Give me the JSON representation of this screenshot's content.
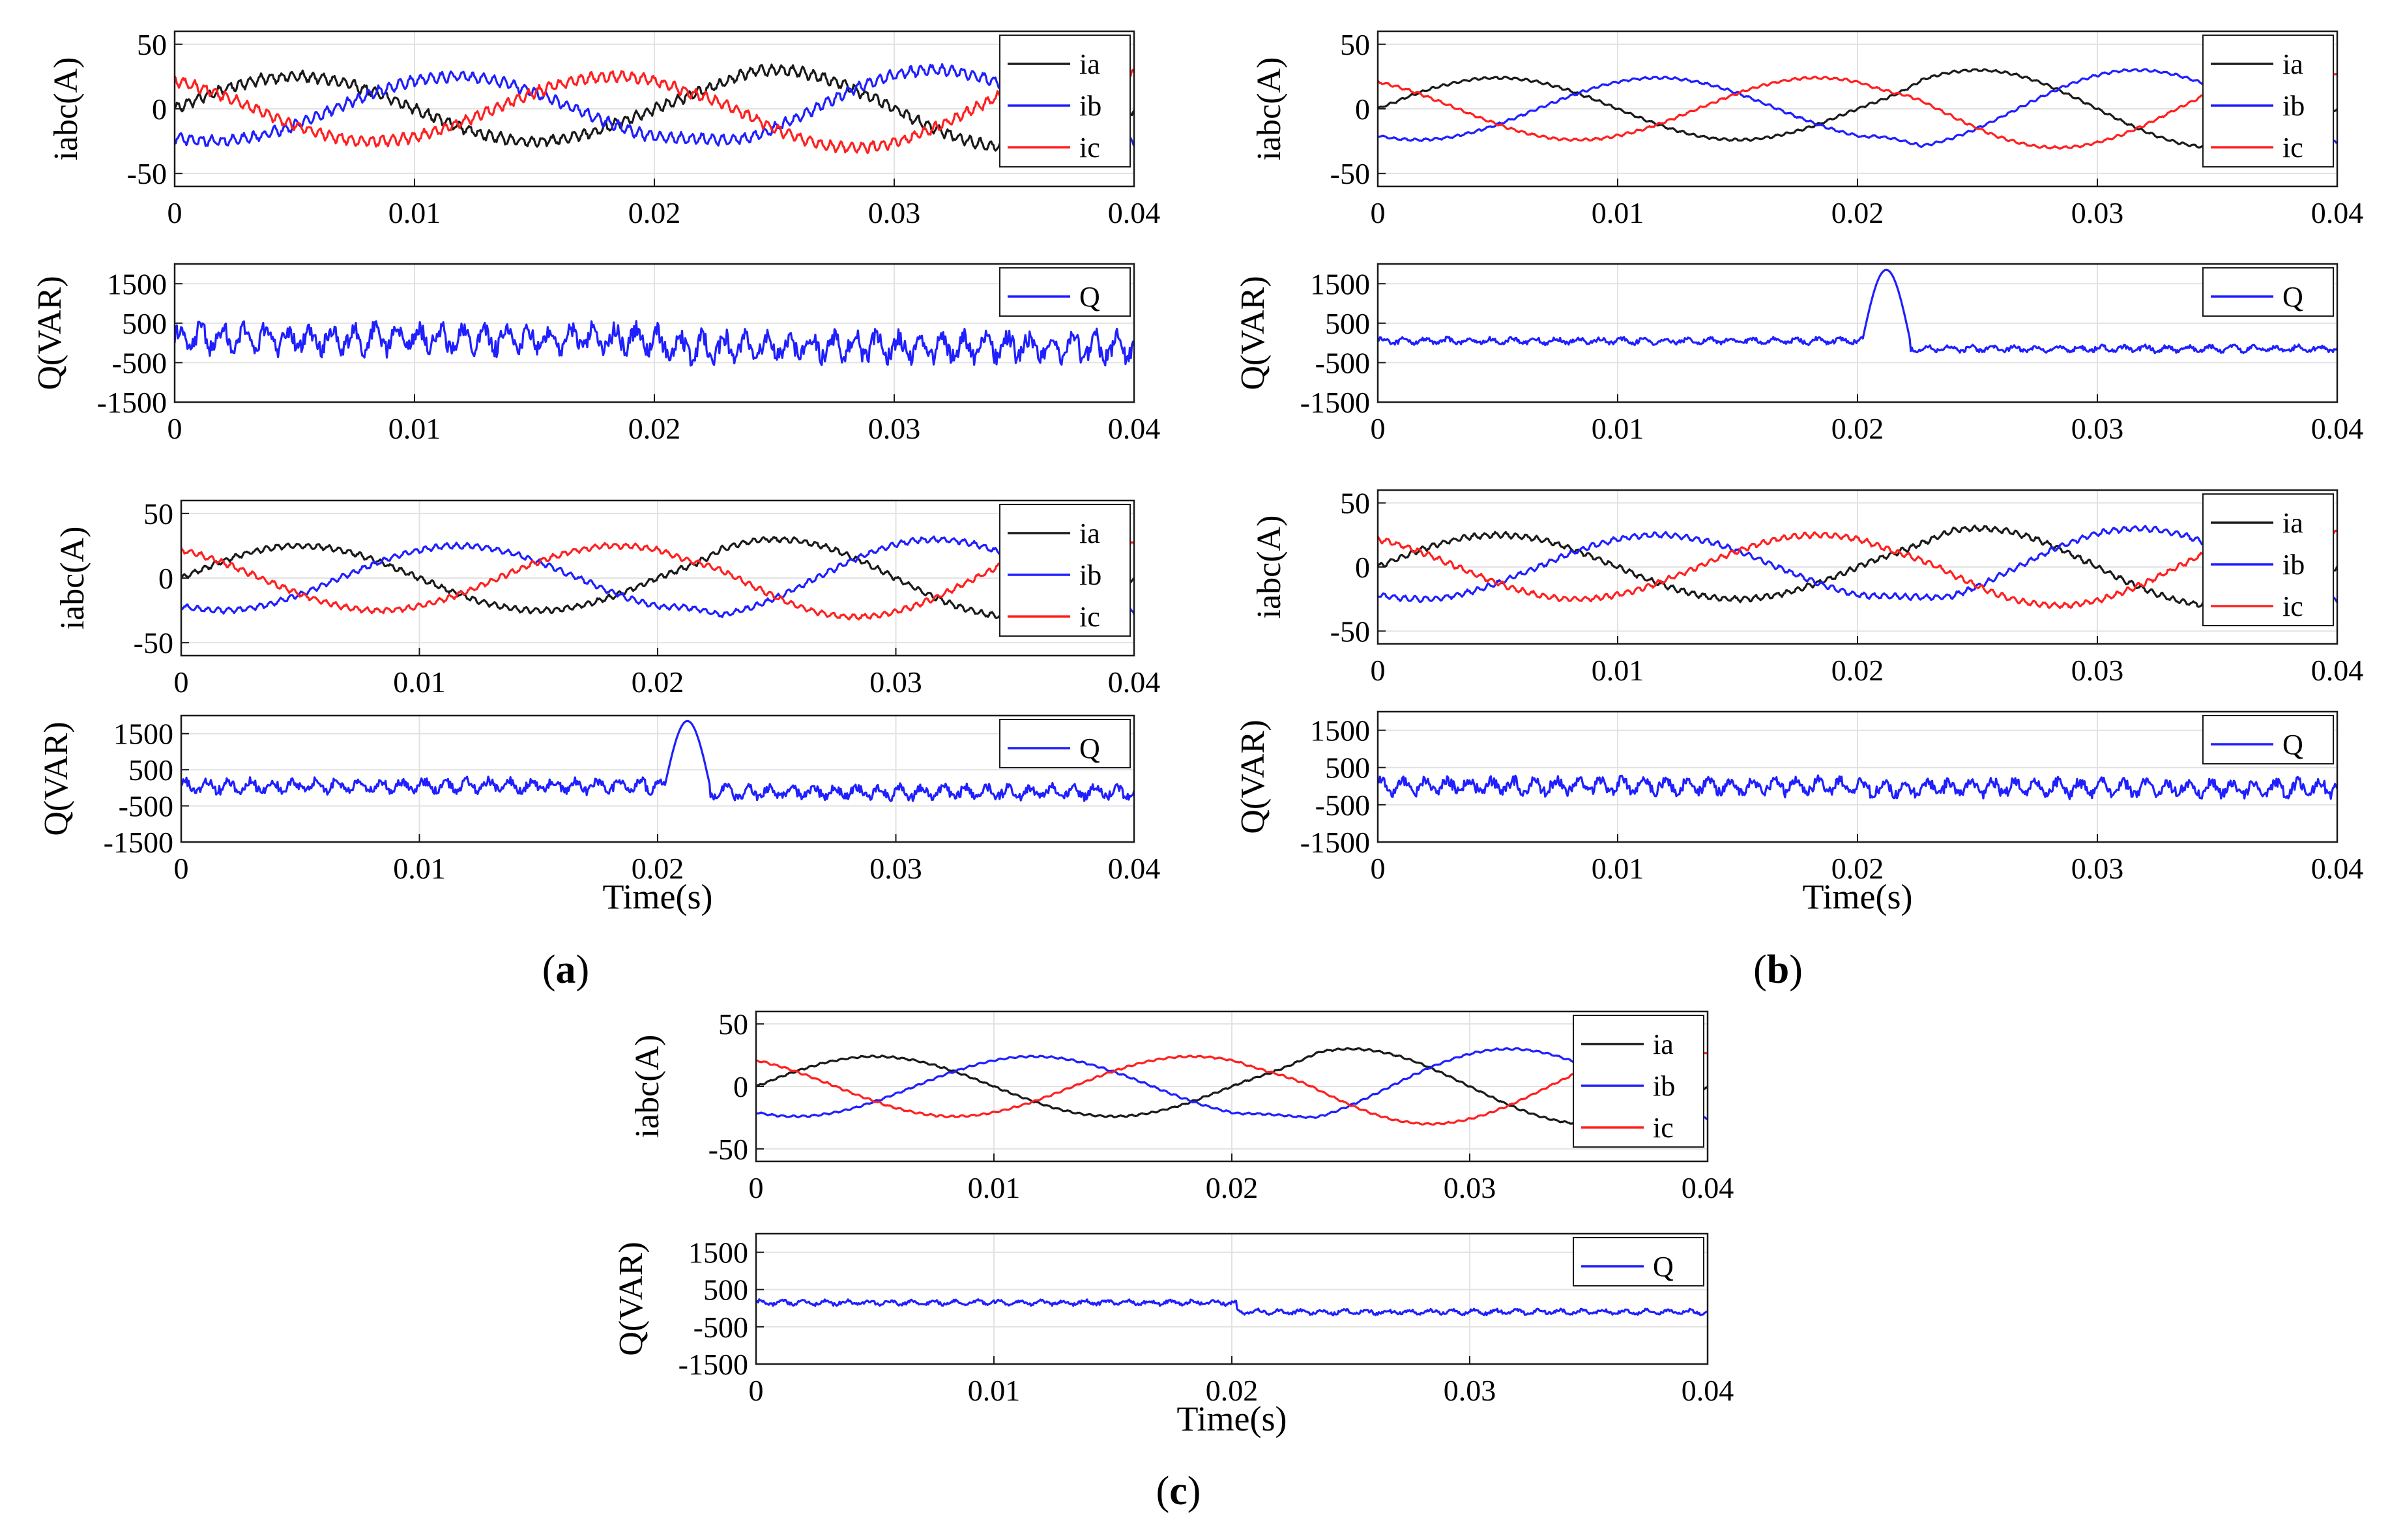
{
  "figure": {
    "captions": [
      "(a)",
      "(b)",
      "(c)"
    ],
    "caption_parts": [
      {
        "open": "(",
        "letter": "a",
        "close": ")"
      },
      {
        "open": "(",
        "letter": "b",
        "close": ")"
      },
      {
        "open": "(",
        "letter": "c",
        "close": ")"
      }
    ]
  },
  "colors": {
    "ia": "#1a1a1a",
    "ib": "#1f1fff",
    "ic": "#ff2020",
    "Q": "#1f1fff",
    "grid": "#e2e2e2"
  },
  "chart_data": [
    {
      "id": "a-top",
      "type": "line",
      "ylabel": "iabc(A)",
      "xlabel": "",
      "xlim": [
        0,
        0.04
      ],
      "ylim": [
        -60,
        60
      ],
      "xticks": [
        "0",
        "0.01",
        "0.02",
        "0.03",
        "0.04"
      ],
      "yticks": [
        "50",
        "0",
        "-50"
      ],
      "ytick_values": [
        50,
        0,
        -50
      ],
      "legend": [
        "ia",
        "ib",
        "ic"
      ],
      "legend_position": "top-right",
      "series": [
        {
          "name": "ia",
          "color_key": "ia",
          "model": "current",
          "phase_deg": 0,
          "amp1": 25,
          "amp2": 30,
          "ripple": 3.5,
          "notch": 0,
          "transition": [
            0.02,
            0.024
          ]
        },
        {
          "name": "ib",
          "color_key": "ib",
          "model": "current",
          "phase_deg": -120,
          "amp1": 25,
          "amp2": 30,
          "ripple": 3.5,
          "notch": 0,
          "transition": [
            0.02,
            0.024
          ]
        },
        {
          "name": "ic",
          "color_key": "ic",
          "model": "current",
          "phase_deg": 120,
          "amp1": 25,
          "amp2": 30,
          "ripple": 3.5,
          "notch": 0,
          "transition": [
            0.02,
            0.024
          ]
        }
      ]
    },
    {
      "id": "a-bot",
      "type": "line",
      "ylabel": "Q(VAR)",
      "xlabel": "",
      "xlim": [
        0,
        0.04
      ],
      "ylim": [
        -1500,
        2000
      ],
      "xticks": [
        "0",
        "0.01",
        "0.02",
        "0.03",
        "0.04"
      ],
      "yticks": [
        "1500",
        "500",
        "-500",
        "-1500"
      ],
      "ytick_values": [
        1500,
        500,
        -500,
        -1500
      ],
      "legend": [
        "Q"
      ],
      "legend_position": "top-right",
      "series": [
        {
          "name": "Q",
          "color_key": "Q",
          "model": "reactive",
          "base1": 100,
          "base2": -100,
          "noise": 480,
          "spike": 0,
          "spike_t": [
            0.0202,
            0.0222
          ]
        }
      ]
    },
    {
      "id": "b-top",
      "type": "line",
      "ylabel": "iabc(A)",
      "xlabel": "",
      "xlim": [
        0,
        0.04
      ],
      "ylim": [
        -60,
        60
      ],
      "xticks": [
        "0",
        "0.01",
        "0.02",
        "0.03",
        "0.04"
      ],
      "yticks": [
        "50",
        "0",
        "-50"
      ],
      "ytick_values": [
        50,
        0,
        -50
      ],
      "legend": [
        "ia",
        "ib",
        "ic"
      ],
      "legend_position": "top-right",
      "series": [
        {
          "name": "ia",
          "color_key": "ia",
          "model": "current",
          "phase_deg": 0,
          "amp1": 24,
          "amp2": 30,
          "ripple": 0.8,
          "notch": 0,
          "transition": [
            0.0202,
            0.0227
          ]
        },
        {
          "name": "ib",
          "color_key": "ib",
          "model": "current",
          "phase_deg": -120,
          "amp1": 24,
          "amp2": 30,
          "ripple": 0.8,
          "notch": 0,
          "transition": [
            0.0202,
            0.0227
          ]
        },
        {
          "name": "ic",
          "color_key": "ic",
          "model": "current",
          "phase_deg": 120,
          "amp1": 24,
          "amp2": 30,
          "ripple": 0.8,
          "notch": 0,
          "transition": [
            0.0202,
            0.0227
          ]
        }
      ]
    },
    {
      "id": "b-bot",
      "type": "line",
      "ylabel": "Q(VAR)",
      "xlabel": "",
      "xlim": [
        0,
        0.04
      ],
      "ylim": [
        -1500,
        2000
      ],
      "xticks": [
        "0",
        "0.01",
        "0.02",
        "0.03",
        "0.04"
      ],
      "yticks": [
        "1500",
        "500",
        "-500",
        "-1500"
      ],
      "ytick_values": [
        1500,
        500,
        -500,
        -1500
      ],
      "legend": [
        "Q"
      ],
      "legend_position": "top-right",
      "series": [
        {
          "name": "Q",
          "color_key": "Q",
          "model": "reactive",
          "base1": 50,
          "base2": -150,
          "noise": 110,
          "spike": 1850,
          "spike_t": [
            0.0202,
            0.0222
          ]
        }
      ]
    },
    {
      "id": "a2-top",
      "type": "line",
      "ylabel": "iabc(A)",
      "xlabel": "",
      "xlim": [
        0,
        0.04
      ],
      "ylim": [
        -60,
        60
      ],
      "xticks": [
        "0",
        "0.01",
        "0.02",
        "0.03",
        "0.04"
      ],
      "yticks": [
        "50",
        "0",
        "-50"
      ],
      "ytick_values": [
        50,
        0,
        -50
      ],
      "legend": [
        "ia",
        "ib",
        "ic"
      ],
      "legend_position": "top-right",
      "series": [
        {
          "name": "ia",
          "color_key": "ia",
          "model": "current",
          "phase_deg": 0,
          "amp1": 25,
          "amp2": 30,
          "ripple": 1.8,
          "notch": 0,
          "transition": [
            0.0202,
            0.0227
          ]
        },
        {
          "name": "ib",
          "color_key": "ib",
          "model": "current",
          "phase_deg": -120,
          "amp1": 25,
          "amp2": 30,
          "ripple": 1.8,
          "notch": 0,
          "transition": [
            0.0202,
            0.0227
          ]
        },
        {
          "name": "ic",
          "color_key": "ic",
          "model": "current",
          "phase_deg": 120,
          "amp1": 25,
          "amp2": 30,
          "ripple": 1.8,
          "notch": 0,
          "transition": [
            0.0202,
            0.0227
          ]
        }
      ]
    },
    {
      "id": "a2-bot",
      "type": "line",
      "ylabel": "Q(VAR)",
      "xlabel": "Time(s)",
      "xlim": [
        0,
        0.04
      ],
      "ylim": [
        -1500,
        2000
      ],
      "xticks": [
        "0",
        "0.01",
        "0.02",
        "0.03",
        "0.04"
      ],
      "yticks": [
        "1500",
        "500",
        "-500",
        "-1500"
      ],
      "ytick_values": [
        1500,
        500,
        -500,
        -1500
      ],
      "legend": [
        "Q"
      ],
      "legend_position": "top-right",
      "series": [
        {
          "name": "Q",
          "color_key": "Q",
          "model": "reactive",
          "base1": 50,
          "base2": -120,
          "noise": 260,
          "spike": 1850,
          "spike_t": [
            0.0203,
            0.0222
          ]
        }
      ]
    },
    {
      "id": "b2-top",
      "type": "line",
      "ylabel": "iabc(A)",
      "xlabel": "",
      "xlim": [
        0,
        0.04
      ],
      "ylim": [
        -60,
        60
      ],
      "xticks": [
        "0",
        "0.01",
        "0.02",
        "0.03",
        "0.04"
      ],
      "yticks": [
        "50",
        "0",
        "-50"
      ],
      "ytick_values": [
        50,
        0,
        -50
      ],
      "legend": [
        "ia",
        "ib",
        "ic"
      ],
      "legend_position": "top-right",
      "series": [
        {
          "name": "ia",
          "color_key": "ia",
          "model": "current",
          "phase_deg": 0,
          "amp1": 25,
          "amp2": 30,
          "ripple": 1.8,
          "notch": 0,
          "transition": [
            0.0202,
            0.024
          ]
        },
        {
          "name": "ib",
          "color_key": "ib",
          "model": "current",
          "phase_deg": -120,
          "amp1": 25,
          "amp2": 30,
          "ripple": 1.8,
          "notch": 0,
          "transition": [
            0.0202,
            0.024
          ]
        },
        {
          "name": "ic",
          "color_key": "ic",
          "model": "current",
          "phase_deg": 120,
          "amp1": 25,
          "amp2": 30,
          "ripple": 1.8,
          "notch": 0,
          "transition": [
            0.0202,
            0.024
          ]
        }
      ]
    },
    {
      "id": "b2-bot",
      "type": "line",
      "ylabel": "Q(VAR)",
      "xlabel": "Time(s)",
      "xlim": [
        0,
        0.04
      ],
      "ylim": [
        -1500,
        2000
      ],
      "xticks": [
        "0",
        "0.01",
        "0.02",
        "0.03",
        "0.04"
      ],
      "yticks": [
        "1500",
        "500",
        "-500",
        "-1500"
      ],
      "ytick_values": [
        1500,
        500,
        -500,
        -1500
      ],
      "legend": [
        "Q"
      ],
      "legend_position": "top-right",
      "series": [
        {
          "name": "Q",
          "color_key": "Q",
          "model": "reactive",
          "base1": 0,
          "base2": -50,
          "noise": 300,
          "spike": 0,
          "spike_t": [
            0.0202,
            0.0222
          ]
        }
      ]
    },
    {
      "id": "c-top",
      "type": "line",
      "ylabel": "iabc(A)",
      "xlabel": "",
      "xlim": [
        0,
        0.04
      ],
      "ylim": [
        -60,
        60
      ],
      "xticks": [
        "0",
        "0.01",
        "0.02",
        "0.03",
        "0.04"
      ],
      "yticks": [
        "50",
        "0",
        "-50"
      ],
      "ytick_values": [
        50,
        0,
        -50
      ],
      "legend": [
        "ia",
        "ib",
        "ic"
      ],
      "legend_position": "top-right",
      "series": [
        {
          "name": "ia",
          "color_key": "ia",
          "model": "current",
          "phase_deg": 0,
          "amp1": 24,
          "amp2": 30,
          "ripple": 0.6,
          "notch": 0,
          "transition": [
            0.0202,
            0.0237
          ]
        },
        {
          "name": "ib",
          "color_key": "ib",
          "model": "current",
          "phase_deg": -120,
          "amp1": 24,
          "amp2": 30,
          "ripple": 0.6,
          "notch": 0,
          "transition": [
            0.0202,
            0.0237
          ]
        },
        {
          "name": "ic",
          "color_key": "ic",
          "model": "current",
          "phase_deg": 120,
          "amp1": 24,
          "amp2": 30,
          "ripple": 0.6,
          "notch": 0,
          "transition": [
            0.0202,
            0.0237
          ]
        }
      ]
    },
    {
      "id": "c-bot",
      "type": "line",
      "ylabel": "Q(VAR)",
      "xlabel": "Time(s)",
      "xlim": [
        0,
        0.04
      ],
      "ylim": [
        -1500,
        2000
      ],
      "xticks": [
        "0",
        "0.01",
        "0.02",
        "0.03",
        "0.04"
      ],
      "yticks": [
        "1500",
        "500",
        "-500",
        "-1500"
      ],
      "ytick_values": [
        1500,
        500,
        -500,
        -1500
      ],
      "legend": [
        "Q"
      ],
      "legend_position": "top-right",
      "series": [
        {
          "name": "Q",
          "color_key": "Q",
          "model": "reactive",
          "base1": 150,
          "base2": -100,
          "noise": 90,
          "spike": 0,
          "spike_t": [
            0.0202,
            0.0222
          ]
        }
      ]
    }
  ]
}
